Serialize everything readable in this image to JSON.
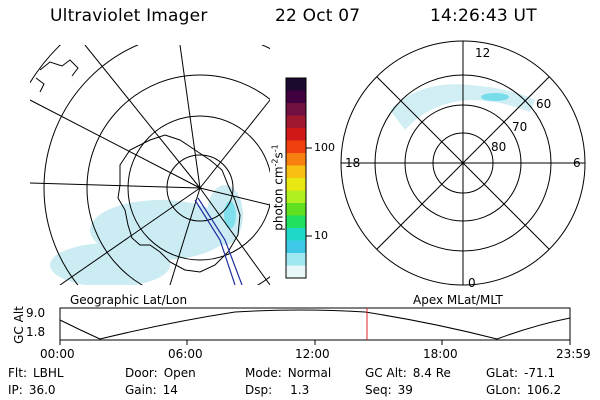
{
  "header": {
    "instrument": "Ultraviolet Imager",
    "date": "22 Oct 07",
    "time": "14:26:43 UT"
  },
  "colorbar": {
    "label_main": "photon cm",
    "label_sup1": "-2",
    "label_mid": "s",
    "label_sup2": "-1",
    "ticks": [
      "100",
      "10"
    ],
    "colors": [
      "#1a0a2e",
      "#400040",
      "#701040",
      "#a01830",
      "#d01818",
      "#f04010",
      "#f88010",
      "#f8c010",
      "#e8e810",
      "#b0f020",
      "#60e020",
      "#20e060",
      "#20d8c8",
      "#40c8e8",
      "#a0e8f0",
      "#e8f8f8"
    ]
  },
  "left_map": {
    "caption": "Geographic Lat/Lon"
  },
  "right_map": {
    "caption": "Apex MLat/MLT",
    "labels": {
      "top": "12",
      "left": "18",
      "right": "6",
      "bottom": "0",
      "lat60": "60",
      "lat70": "70",
      "lat80": "80"
    }
  },
  "altitude_plot": {
    "ylabel": "GC Alt",
    "y_ticks": [
      "9.0",
      "1.8"
    ],
    "x_ticks": [
      "00:00",
      "06:00",
      "12:00",
      "18:00",
      "23:59"
    ]
  },
  "info": {
    "row1": [
      {
        "key": "Flt:",
        "value": "LBHL"
      },
      {
        "key": "Door:",
        "value": "Open"
      },
      {
        "key": "Mode:",
        "value": "Normal"
      },
      {
        "key": "GC Alt:",
        "value": "8.4 Re"
      },
      {
        "key": "GLat:",
        "value": "-71.1"
      }
    ],
    "row2": [
      {
        "key": "IP:",
        "value": "36.0"
      },
      {
        "key": "Gain:",
        "value": "14"
      },
      {
        "key": "Dsp:",
        "value": "1.3"
      },
      {
        "key": "Seq:",
        "value": "39"
      },
      {
        "key": "GLon:",
        "value": "106.2"
      }
    ]
  }
}
